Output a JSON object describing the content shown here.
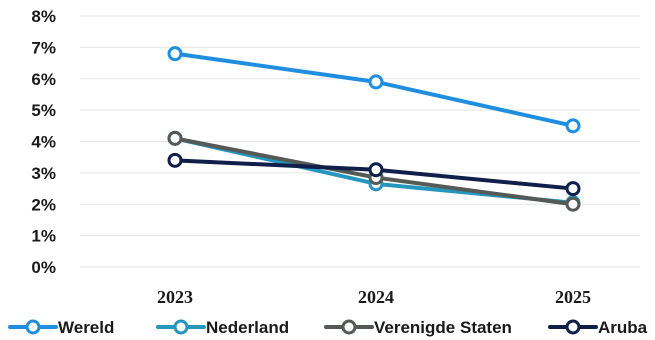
{
  "chart_data": {
    "type": "line",
    "x": [
      "2023",
      "2024",
      "2025"
    ],
    "ylim": [
      0,
      8
    ],
    "yticks": [
      "0%",
      "1%",
      "2%",
      "3%",
      "4%",
      "5%",
      "6%",
      "7%",
      "8%"
    ],
    "grid": true,
    "legend_position": "bottom",
    "series": [
      {
        "name": "Wereld",
        "values": [
          6.8,
          5.9,
          4.5
        ],
        "color": "#1f8ee0"
      },
      {
        "name": "Nederland",
        "values": [
          4.1,
          2.65,
          2.05
        ],
        "color": "#2596be"
      },
      {
        "name": "Verenigde Staten",
        "values": [
          4.1,
          2.85,
          2.0
        ],
        "color": "#555a56"
      },
      {
        "name": "Aruba",
        "values": [
          3.4,
          3.1,
          2.5
        ],
        "color": "#0f1f4a"
      }
    ]
  }
}
